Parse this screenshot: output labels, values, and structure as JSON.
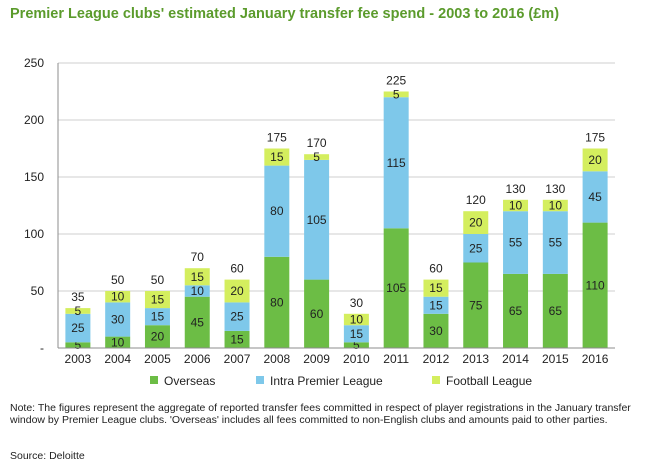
{
  "title": "Premier League clubs' estimated January transfer fee spend - 2003 to 2016 (£m)",
  "note": "Note:  The figures represent the aggregate of reported transfer fees committed in respect of player registrations in the January transfer window by Premier League clubs.  'Overseas' includes all fees committed to non-English clubs and amounts paid to other parties.",
  "source": "Source: Deloitte",
  "chart_data": {
    "type": "bar",
    "stacked": true,
    "title": "Premier League clubs' estimated January transfer fee spend - 2003 to 2016 (£m)",
    "categories": [
      "2003",
      "2004",
      "2005",
      "2006",
      "2007",
      "2008",
      "2009",
      "2010",
      "2011",
      "2012",
      "2013",
      "2014",
      "2015",
      "2016"
    ],
    "series": [
      {
        "name": "Overseas",
        "color": "#6cbd45",
        "values": [
          5,
          10,
          20,
          45,
          15,
          80,
          60,
          5,
          105,
          30,
          75,
          65,
          65,
          110
        ]
      },
      {
        "name": "Intra Premier League",
        "color": "#7ec8ea",
        "values": [
          25,
          30,
          15,
          10,
          25,
          80,
          105,
          15,
          115,
          15,
          25,
          55,
          55,
          45
        ]
      },
      {
        "name": "Football League",
        "color": "#d4ee5e",
        "values": [
          5,
          10,
          15,
          15,
          20,
          15,
          5,
          10,
          5,
          15,
          20,
          10,
          10,
          20
        ]
      }
    ],
    "totals": [
      35,
      50,
      50,
      70,
      60,
      175,
      170,
      30,
      225,
      60,
      120,
      130,
      130,
      175
    ],
    "ylim": [
      0,
      250
    ],
    "yticks": [
      0,
      50,
      100,
      150,
      200,
      250
    ],
    "ytick_labels": [
      "-",
      "50",
      "100",
      "150",
      "200",
      "250"
    ],
    "grid": true,
    "legend": "bottom"
  }
}
